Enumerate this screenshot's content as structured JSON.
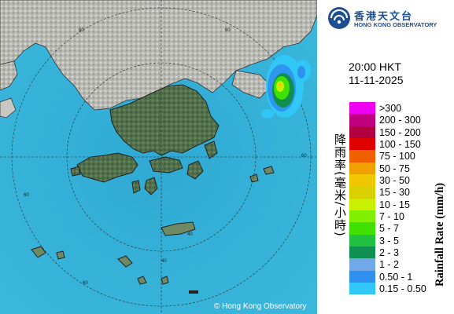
{
  "map": {
    "copyright": "© Hong Kong Observatory",
    "range_ring_labels": [
      "60",
      "60",
      "60",
      "40",
      "40",
      "60",
      "60"
    ]
  },
  "logo": {
    "name_cn": "香港天文台",
    "name_en": "HONG KONG OBSERVATORY"
  },
  "time": "20:00 HKT",
  "date": "11-11-2025",
  "legend": {
    "title_cn": "降雨率(毫米/小時)",
    "title_en": "Rainfall Rate (mm/h)",
    "items": [
      {
        "label": ">300",
        "color": "#f000f0"
      },
      {
        "label": "200 - 300",
        "color": "#c0007f"
      },
      {
        "label": "150 - 200",
        "color": "#b00040"
      },
      {
        "label": "100 - 150",
        "color": "#e00000"
      },
      {
        "label": "75 - 100",
        "color": "#f06000"
      },
      {
        "label": "50 - 75",
        "color": "#f0a000"
      },
      {
        "label": "30 - 50",
        "color": "#f0c800"
      },
      {
        "label": "15 - 30",
        "color": "#d8d000"
      },
      {
        "label": "10 - 15",
        "color": "#c8f000"
      },
      {
        "label": "7 - 10",
        "color": "#80f000"
      },
      {
        "label": "5 - 7",
        "color": "#40e000"
      },
      {
        "label": "3 - 5",
        "color": "#20c040"
      },
      {
        "label": "2 - 3",
        "color": "#109050"
      },
      {
        "label": "1 - 2",
        "color": "#70a8e8"
      },
      {
        "label": "0.50 - 1",
        "color": "#3090f0"
      },
      {
        "label": "0.15 - 0.50",
        "color": "#30c8f8"
      }
    ]
  }
}
